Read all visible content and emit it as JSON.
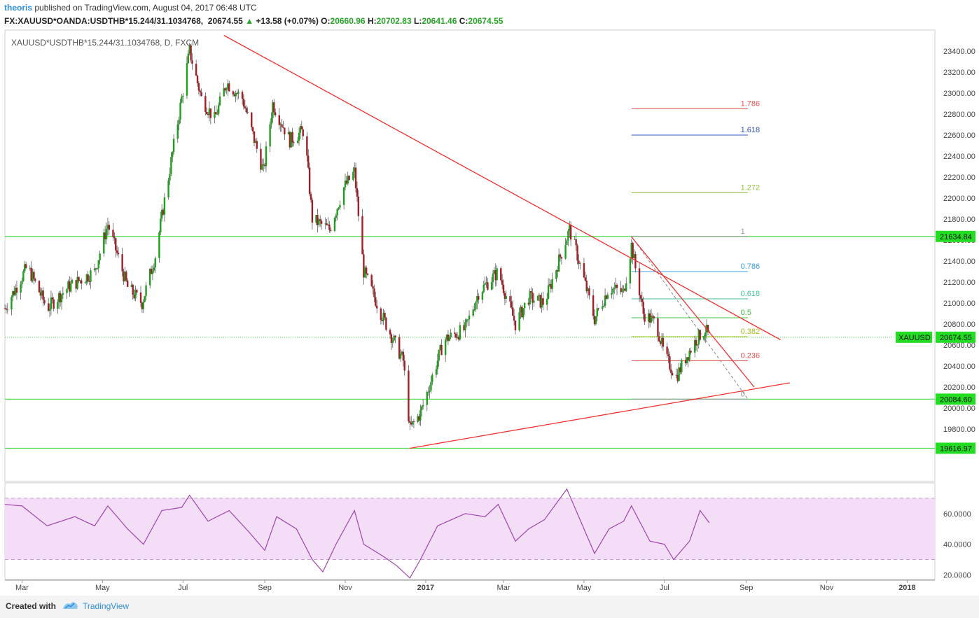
{
  "header": {
    "author": "theoris",
    "published_text": " published on TradingView.com, August 04, 2017 06:48 UTC",
    "symbol": "FX:XAUUSD*OANDA:USDTHB*15.244/31.1034768,",
    "last": "20674.55",
    "change": "+13.58 (+0.07%)",
    "o_label": "O:",
    "o_val": "20660.96",
    "h_label": "H:",
    "h_val": "20702.83",
    "l_label": "L:",
    "l_val": "20641.46",
    "c_label": "C:",
    "c_val": "20674.55"
  },
  "footer": {
    "created_with": "Created with",
    "brand": "TradingView"
  },
  "colors": {
    "up": "#1f9e1f",
    "down": "#a0202a",
    "trend": "#f03030",
    "hline": "#44dd44",
    "rsi_line": "#a045b0",
    "rsi_band": "#f3ddf7",
    "axis_badge": "#22dd22"
  },
  "chart_data": {
    "type": "line",
    "title": "XAUUSD*USDTHB*15.244/31.1034768, D, FXCM",
    "xlabel": "",
    "ylabel": "",
    "ylim": [
      19300,
      23600
    ],
    "xlim": [
      "2016-02-17",
      "2018-01-22"
    ],
    "x_ticks": [
      {
        "date": "2016-03-01",
        "label": "Mar"
      },
      {
        "date": "2016-05-01",
        "label": "May"
      },
      {
        "date": "2016-07-01",
        "label": "Jul"
      },
      {
        "date": "2016-09-01",
        "label": "Sep"
      },
      {
        "date": "2016-11-01",
        "label": "Nov"
      },
      {
        "date": "2017-01-01",
        "label": "2017",
        "bold": true
      },
      {
        "date": "2017-03-01",
        "label": "Mar"
      },
      {
        "date": "2017-05-01",
        "label": "May"
      },
      {
        "date": "2017-07-01",
        "label": "Jul"
      },
      {
        "date": "2017-09-01",
        "label": "Sep"
      },
      {
        "date": "2017-11-01",
        "label": "Nov"
      },
      {
        "date": "2018-01-01",
        "label": "2018",
        "bold": true
      }
    ],
    "y_ticks": [
      "23400.00",
      "23200.00",
      "23000.00",
      "22800.00",
      "22600.00",
      "22400.00",
      "22200.00",
      "22000.00",
      "21800.00",
      "21600.00",
      "21400.00",
      "21200.00",
      "21000.00",
      "20800.00",
      "20600.00",
      "20400.00",
      "20200.00",
      "20000.00",
      "19800.00"
    ],
    "price_path": [
      {
        "date": "2016-02-17",
        "price": 20950
      },
      {
        "date": "2016-03-05",
        "price": 21350
      },
      {
        "date": "2016-03-20",
        "price": 20950
      },
      {
        "date": "2016-04-05",
        "price": 21150
      },
      {
        "date": "2016-04-25",
        "price": 21300
      },
      {
        "date": "2016-05-05",
        "price": 21750
      },
      {
        "date": "2016-05-20",
        "price": 21150
      },
      {
        "date": "2016-05-31",
        "price": 21000
      },
      {
        "date": "2016-06-10",
        "price": 21450
      },
      {
        "date": "2016-06-24",
        "price": 22500
      },
      {
        "date": "2016-07-06",
        "price": 23400
      },
      {
        "date": "2016-07-15",
        "price": 22950
      },
      {
        "date": "2016-07-25",
        "price": 22750
      },
      {
        "date": "2016-08-03",
        "price": 23100
      },
      {
        "date": "2016-08-15",
        "price": 22950
      },
      {
        "date": "2016-08-31",
        "price": 22250
      },
      {
        "date": "2016-09-07",
        "price": 22900
      },
      {
        "date": "2016-09-20",
        "price": 22550
      },
      {
        "date": "2016-10-01",
        "price": 22650
      },
      {
        "date": "2016-10-07",
        "price": 21800
      },
      {
        "date": "2016-10-20",
        "price": 21700
      },
      {
        "date": "2016-10-31",
        "price": 22100
      },
      {
        "date": "2016-11-08",
        "price": 22250
      },
      {
        "date": "2016-11-15",
        "price": 21300
      },
      {
        "date": "2016-11-30",
        "price": 20850
      },
      {
        "date": "2016-12-15",
        "price": 20450
      },
      {
        "date": "2016-12-20",
        "price": 19800
      },
      {
        "date": "2016-12-28",
        "price": 19950
      },
      {
        "date": "2017-01-15",
        "price": 20650
      },
      {
        "date": "2017-01-31",
        "price": 20750
      },
      {
        "date": "2017-02-10",
        "price": 21100
      },
      {
        "date": "2017-02-25",
        "price": 21300
      },
      {
        "date": "2017-03-10",
        "price": 20800
      },
      {
        "date": "2017-03-20",
        "price": 21050
      },
      {
        "date": "2017-04-01",
        "price": 21000
      },
      {
        "date": "2017-04-20",
        "price": 21700
      },
      {
        "date": "2017-04-25",
        "price": 21500
      },
      {
        "date": "2017-05-09",
        "price": 20850
      },
      {
        "date": "2017-05-20",
        "price": 21150
      },
      {
        "date": "2017-05-31",
        "price": 21100
      },
      {
        "date": "2017-06-06",
        "price": 21550
      },
      {
        "date": "2017-06-15",
        "price": 20900
      },
      {
        "date": "2017-06-25",
        "price": 20800
      },
      {
        "date": "2017-07-01",
        "price": 20500
      },
      {
        "date": "2017-07-10",
        "price": 20300
      },
      {
        "date": "2017-07-18",
        "price": 20500
      },
      {
        "date": "2017-07-25",
        "price": 20650
      },
      {
        "date": "2017-08-01",
        "price": 20750
      },
      {
        "date": "2017-08-04",
        "price": 20674.55
      }
    ],
    "horizontal_levels": [
      {
        "price": 21634.84,
        "label": "21634.84"
      },
      {
        "price": 20084.6,
        "label": "20084.60"
      },
      {
        "price": 19616.97,
        "label": "19616.97"
      }
    ],
    "last_price": {
      "price": 20674.55,
      "label": "20674.55",
      "symbol": "XAUUSD"
    },
    "trendlines": [
      {
        "from": {
          "date": "2016-08-01",
          "price": 23550
        },
        "to": {
          "date": "2017-09-27",
          "price": 20650
        }
      },
      {
        "from": {
          "date": "2016-12-20",
          "price": 19616.97
        },
        "to": {
          "date": "2017-10-04",
          "price": 20240
        }
      },
      {
        "from": {
          "date": "2017-06-06",
          "price": 21630
        },
        "to": {
          "date": "2017-09-07",
          "price": 20200
        }
      }
    ],
    "fib_levels": [
      {
        "ratio": "1.786",
        "price": 22850,
        "color": "#e05050"
      },
      {
        "ratio": "1.618",
        "price": 22600,
        "color": "#3050c0"
      },
      {
        "ratio": "1.272",
        "price": 22050,
        "color": "#8fc040"
      },
      {
        "ratio": "1",
        "price": 21634.84,
        "color": "#999999"
      },
      {
        "ratio": "0.786",
        "price": 21300,
        "color": "#3ca0e0"
      },
      {
        "ratio": "0.618",
        "price": 21040,
        "color": "#40c090"
      },
      {
        "ratio": "0.5",
        "price": 20860,
        "color": "#40c040"
      },
      {
        "ratio": "0.382",
        "price": 20680,
        "color": "#a0c020"
      },
      {
        "ratio": "0.236",
        "price": 20450,
        "color": "#e05050"
      },
      {
        "ratio": "0",
        "price": 20084.6,
        "color": "#999999"
      }
    ],
    "fib_range": {
      "start": "2017-06-06",
      "end": "2017-08-28",
      "label_date": "2017-09-01"
    },
    "rsi": {
      "ylim": [
        17,
        80
      ],
      "y_ticks": [
        "60.0000",
        "40.0000",
        "20.0000"
      ],
      "band": [
        30,
        70
      ],
      "path": [
        {
          "date": "2016-02-17",
          "value": 66
        },
        {
          "date": "2016-03-01",
          "value": 65
        },
        {
          "date": "2016-03-20",
          "value": 52
        },
        {
          "date": "2016-04-10",
          "value": 58
        },
        {
          "date": "2016-04-25",
          "value": 52
        },
        {
          "date": "2016-05-05",
          "value": 65
        },
        {
          "date": "2016-05-20",
          "value": 50
        },
        {
          "date": "2016-06-01",
          "value": 40
        },
        {
          "date": "2016-06-15",
          "value": 62
        },
        {
          "date": "2016-06-30",
          "value": 64
        },
        {
          "date": "2016-07-06",
          "value": 72
        },
        {
          "date": "2016-07-20",
          "value": 55
        },
        {
          "date": "2016-08-05",
          "value": 62
        },
        {
          "date": "2016-08-20",
          "value": 48
        },
        {
          "date": "2016-09-01",
          "value": 36
        },
        {
          "date": "2016-09-10",
          "value": 58
        },
        {
          "date": "2016-09-25",
          "value": 50
        },
        {
          "date": "2016-10-07",
          "value": 30
        },
        {
          "date": "2016-10-15",
          "value": 22
        },
        {
          "date": "2016-10-25",
          "value": 40
        },
        {
          "date": "2016-11-08",
          "value": 62
        },
        {
          "date": "2016-11-15",
          "value": 40
        },
        {
          "date": "2016-11-30",
          "value": 32
        },
        {
          "date": "2016-12-10",
          "value": 26
        },
        {
          "date": "2016-12-20",
          "value": 18
        },
        {
          "date": "2016-12-28",
          "value": 30
        },
        {
          "date": "2017-01-10",
          "value": 52
        },
        {
          "date": "2017-01-31",
          "value": 60
        },
        {
          "date": "2017-02-15",
          "value": 58
        },
        {
          "date": "2017-02-25",
          "value": 66
        },
        {
          "date": "2017-03-10",
          "value": 42
        },
        {
          "date": "2017-03-20",
          "value": 50
        },
        {
          "date": "2017-04-01",
          "value": 56
        },
        {
          "date": "2017-04-18",
          "value": 76
        },
        {
          "date": "2017-04-25",
          "value": 62
        },
        {
          "date": "2017-05-09",
          "value": 34
        },
        {
          "date": "2017-05-20",
          "value": 50
        },
        {
          "date": "2017-05-31",
          "value": 55
        },
        {
          "date": "2017-06-06",
          "value": 65
        },
        {
          "date": "2017-06-20",
          "value": 42
        },
        {
          "date": "2017-07-01",
          "value": 40
        },
        {
          "date": "2017-07-08",
          "value": 30
        },
        {
          "date": "2017-07-20",
          "value": 42
        },
        {
          "date": "2017-07-28",
          "value": 62
        },
        {
          "date": "2017-08-04",
          "value": 54
        }
      ]
    }
  }
}
